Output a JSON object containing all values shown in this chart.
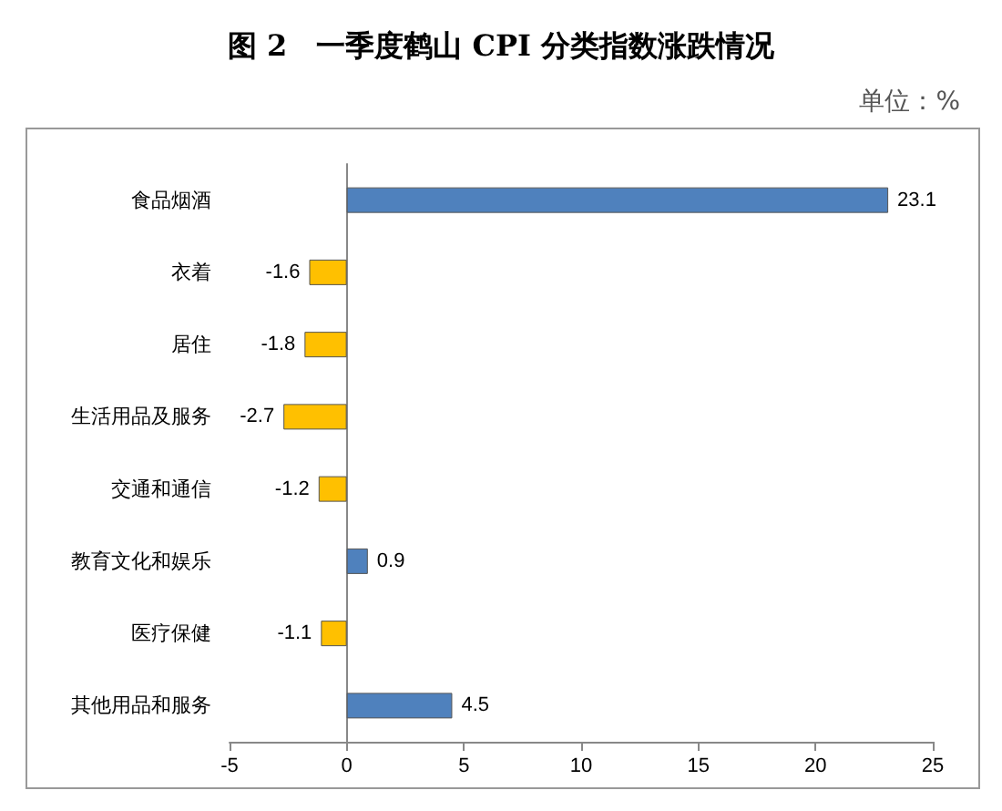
{
  "chart_data": {
    "type": "bar",
    "orientation": "horizontal",
    "title": "图 2　一季度鹤山 CPI 分类指数涨跌情况",
    "subtitle": "单位：%",
    "categories": [
      "食品烟酒",
      "衣着",
      "居住",
      "生活用品及服务",
      "交通和通信",
      "教育文化和娱乐",
      "医疗保健",
      "其他用品和服务"
    ],
    "values": [
      23.1,
      -1.6,
      -1.8,
      -2.7,
      -1.2,
      0.9,
      -1.1,
      4.5
    ],
    "colors": [
      "#4f81bd",
      "#ffc000",
      "#ffc000",
      "#ffc000",
      "#ffc000",
      "#4f81bd",
      "#ffc000",
      "#4f81bd"
    ],
    "xlim": [
      -5,
      25
    ],
    "xticks": [
      -5,
      0,
      5,
      10,
      15,
      20,
      25
    ],
    "data_labels": true
  }
}
